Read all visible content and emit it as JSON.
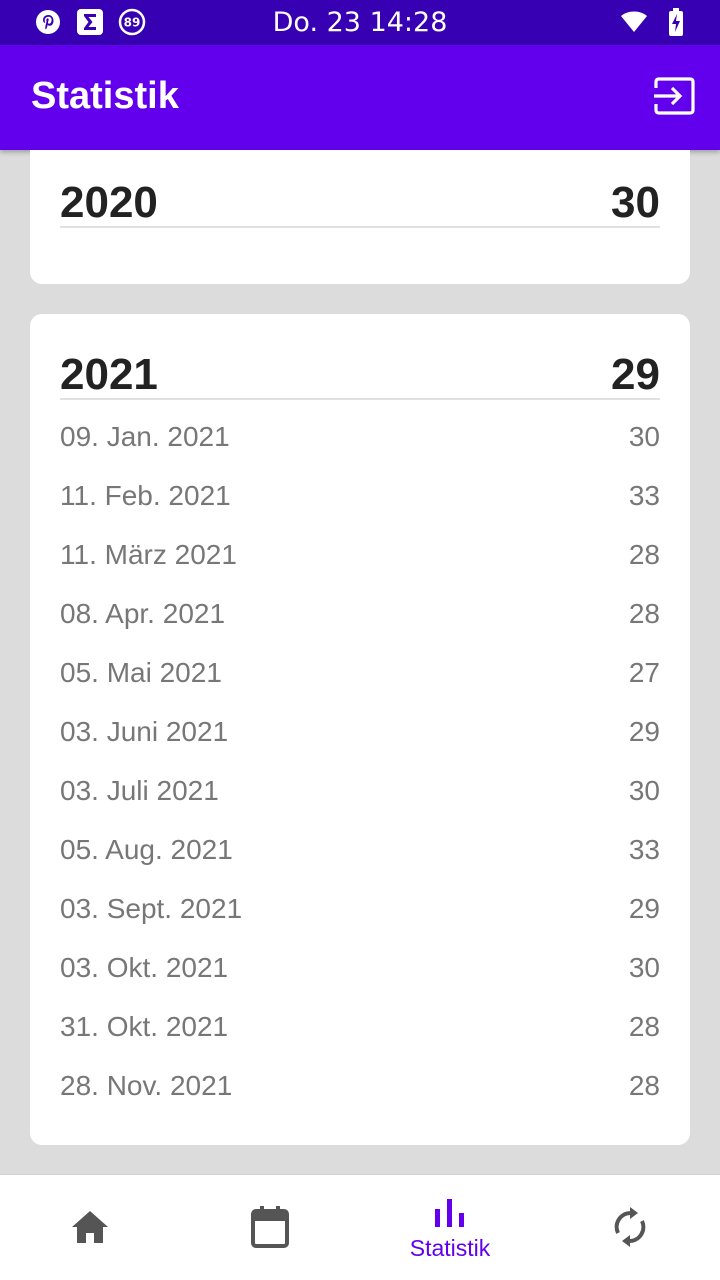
{
  "status_bar": {
    "time": "Do. 23 14:28",
    "notification_badge": "89",
    "icons": [
      "pinterest-icon",
      "sigma-icon",
      "badge-89-icon",
      "wifi-icon",
      "battery-charging-icon"
    ]
  },
  "app_bar": {
    "title": "Statistik",
    "action_icon": "exit-icon"
  },
  "cards": [
    {
      "year": "2020",
      "value": "30",
      "rows": []
    },
    {
      "year": "2021",
      "value": "29",
      "rows": [
        {
          "date": "09. Jan. 2021",
          "value": "30"
        },
        {
          "date": "11. Feb. 2021",
          "value": "33"
        },
        {
          "date": "11. März 2021",
          "value": "28"
        },
        {
          "date": "08. Apr. 2021",
          "value": "28"
        },
        {
          "date": "05. Mai 2021",
          "value": "27"
        },
        {
          "date": "03. Juni 2021",
          "value": "29"
        },
        {
          "date": "03. Juli 2021",
          "value": "30"
        },
        {
          "date": "05. Aug. 2021",
          "value": "33"
        },
        {
          "date": "03. Sept. 2021",
          "value": "29"
        },
        {
          "date": "03. Okt. 2021",
          "value": "30"
        },
        {
          "date": "31. Okt. 2021",
          "value": "28"
        },
        {
          "date": "28. Nov. 2021",
          "value": "28"
        }
      ]
    }
  ],
  "bottom_nav": {
    "items": [
      {
        "icon": "home-icon",
        "label": ""
      },
      {
        "icon": "calendar-icon",
        "label": ""
      },
      {
        "icon": "bar-chart-icon",
        "label": "Statistik"
      },
      {
        "icon": "sync-icon",
        "label": ""
      }
    ],
    "active_color": "#6200ee",
    "inactive_color": "#555555"
  },
  "colors": {
    "status_bar": "#3700b3",
    "app_bar": "#6200ee",
    "background": "#dcdcdc"
  }
}
